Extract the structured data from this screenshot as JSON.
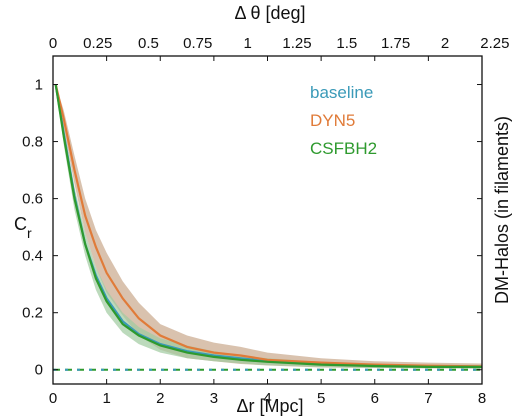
{
  "chart_data": {
    "type": "line",
    "xlabel": "Δr [Mpc]",
    "x2label": "Δ θ [deg]",
    "ylabel": "C",
    "ylabel_sub": "r",
    "right_label": "DM-Halos (in filaments)",
    "xlim": [
      0,
      8
    ],
    "ylim": [
      -0.05,
      1.1
    ],
    "x_ticks": [
      0,
      1,
      2,
      3,
      4,
      5,
      6,
      7,
      8
    ],
    "y_ticks": [
      0,
      0.2,
      0.4,
      0.6,
      0.8,
      1
    ],
    "x2_ticks": [
      {
        "at": 0.0,
        "label": "0"
      },
      {
        "at": 0.835,
        "label": "0.25"
      },
      {
        "at": 1.78,
        "label": "0.5"
      },
      {
        "at": 2.7,
        "label": "0.75"
      },
      {
        "at": 3.63,
        "label": "1"
      },
      {
        "at": 4.55,
        "label": "1.25"
      },
      {
        "at": 5.48,
        "label": "1.5"
      },
      {
        "at": 6.39,
        "label": "1.75"
      },
      {
        "at": 7.31,
        "label": "2"
      },
      {
        "at": 8.24,
        "label": "2.25"
      }
    ],
    "legend_position": "top-right",
    "series": [
      {
        "name": "baseline",
        "color": "#3a9ab8",
        "x": [
          0.05,
          0.2,
          0.4,
          0.6,
          0.8,
          1.0,
          1.3,
          1.6,
          2.0,
          2.5,
          3.0,
          3.5,
          4.0,
          5.0,
          6.0,
          7.0,
          8.0
        ],
        "y": [
          1.0,
          0.83,
          0.61,
          0.44,
          0.33,
          0.25,
          0.17,
          0.125,
          0.09,
          0.065,
          0.05,
          0.04,
          0.03,
          0.02,
          0.015,
          0.012,
          0.01
        ]
      },
      {
        "name": "DYN5",
        "color": "#e07b39",
        "band_color": "#c9a88c",
        "x": [
          0.05,
          0.2,
          0.4,
          0.6,
          0.8,
          1.0,
          1.3,
          1.6,
          2.0,
          2.5,
          3.0,
          3.5,
          4.0,
          5.0,
          6.0,
          7.0,
          8.0
        ],
        "y": [
          1.0,
          0.88,
          0.7,
          0.54,
          0.43,
          0.34,
          0.25,
          0.18,
          0.12,
          0.08,
          0.06,
          0.05,
          0.035,
          0.025,
          0.018,
          0.014,
          0.012
        ],
        "lower": [
          1.0,
          0.85,
          0.65,
          0.48,
          0.36,
          0.27,
          0.19,
          0.12,
          0.07,
          0.04,
          0.03,
          0.02,
          0.015,
          0.008,
          0.006,
          0.005,
          0.004
        ],
        "upper": [
          1.0,
          0.91,
          0.75,
          0.6,
          0.49,
          0.41,
          0.31,
          0.235,
          0.16,
          0.12,
          0.095,
          0.08,
          0.06,
          0.04,
          0.03,
          0.025,
          0.022
        ]
      },
      {
        "name": "CSFBH2",
        "color": "#2e9a2e",
        "band_color": "#9fcaa0",
        "x": [
          0.05,
          0.2,
          0.4,
          0.6,
          0.8,
          1.0,
          1.3,
          1.6,
          2.0,
          2.5,
          3.0,
          3.5,
          4.0,
          5.0,
          6.0,
          7.0,
          8.0
        ],
        "y": [
          1.0,
          0.82,
          0.6,
          0.44,
          0.32,
          0.24,
          0.16,
          0.12,
          0.085,
          0.06,
          0.045,
          0.035,
          0.028,
          0.018,
          0.013,
          0.01,
          0.01
        ],
        "lower": [
          1.0,
          0.79,
          0.56,
          0.4,
          0.28,
          0.2,
          0.13,
          0.09,
          0.06,
          0.04,
          0.03,
          0.022,
          0.016,
          0.009,
          0.006,
          0.005,
          0.004
        ],
        "upper": [
          1.0,
          0.85,
          0.64,
          0.48,
          0.36,
          0.28,
          0.2,
          0.15,
          0.11,
          0.085,
          0.065,
          0.05,
          0.04,
          0.028,
          0.02,
          0.016,
          0.015
        ]
      }
    ],
    "reference_lines": [
      {
        "color": "#2e9a2e",
        "style": "dashed",
        "x": [
          0,
          8
        ],
        "y": [
          0,
          0
        ]
      },
      {
        "color": "#3a9ab8",
        "style": "dashed",
        "x": [
          0,
          8
        ],
        "y": [
          0,
          0
        ]
      }
    ]
  }
}
